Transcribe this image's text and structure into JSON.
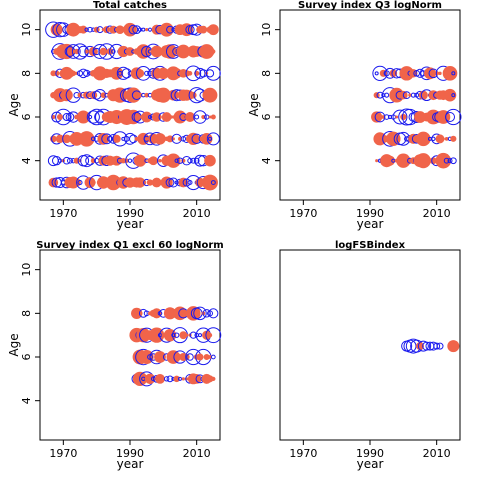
{
  "chart_data": [
    {
      "type": "bubble-residuals",
      "title": "Total catches",
      "xlabel": "year",
      "ylabel": "Age",
      "xlim": [
        1963,
        2017
      ],
      "ylim": [
        2.2,
        10.9
      ],
      "xticks": [
        "1970",
        "1990",
        "2010"
      ],
      "yticks": [
        "4",
        "6",
        "8",
        "10"
      ],
      "years": [
        1967,
        2015
      ],
      "ages": [
        3,
        4,
        5,
        6,
        7,
        8,
        9,
        10
      ],
      "mode": "dense"
    },
    {
      "type": "bubble-residuals",
      "title": "Survey index Q3 logNorm",
      "xlabel": "year",
      "ylabel": "Age",
      "xlim": [
        1963,
        2017
      ],
      "ylim": [
        2.2,
        10.9
      ],
      "xticks": [
        "1970",
        "1990",
        "2010"
      ],
      "yticks": [
        "4",
        "6",
        "8",
        "10"
      ],
      "years": [
        1992,
        2015
      ],
      "ages": [
        4,
        5,
        6,
        7,
        8
      ],
      "mode": "dense"
    },
    {
      "type": "bubble-residuals",
      "title": "Survey index Q1 excl 60 logNorm",
      "xlabel": "year",
      "ylabel": "Age",
      "xlim": [
        1963,
        2017
      ],
      "ylim": [
        2.2,
        10.9
      ],
      "xticks": [
        "1970",
        "1990",
        "2010"
      ],
      "yticks": [
        "4",
        "6",
        "8",
        "10"
      ],
      "years": [
        1992,
        2015
      ],
      "ages": [
        5,
        6,
        7,
        8
      ],
      "mode": "dense"
    },
    {
      "type": "bubble-residuals",
      "title": "logFSBindex",
      "xlabel": "year",
      "ylabel": "",
      "xlim": [
        1963,
        2017
      ],
      "ylim": [
        2.2,
        10.9
      ],
      "xticks": [
        "1970",
        "1990",
        "2010"
      ],
      "yticks": [],
      "years": [
        2001,
        2015
      ],
      "ages": [
        6.5
      ],
      "mode": "explicit",
      "points": [
        {
          "x": 2001,
          "r": 5,
          "sign": "neg"
        },
        {
          "x": 2002,
          "r": 6,
          "sign": "neg"
        },
        {
          "x": 2003,
          "r": 7,
          "sign": "neg"
        },
        {
          "x": 2004,
          "r": 6,
          "sign": "neg"
        },
        {
          "x": 2005,
          "r": 4,
          "sign": "pos"
        },
        {
          "x": 2006,
          "r": 5,
          "sign": "neg"
        },
        {
          "x": 2007,
          "r": 4,
          "sign": "neg"
        },
        {
          "x": 2008,
          "r": 4,
          "sign": "neg"
        },
        {
          "x": 2009,
          "r": 4,
          "sign": "neg"
        },
        {
          "x": 2010,
          "r": 3,
          "sign": "neg"
        },
        {
          "x": 2011,
          "r": 3,
          "sign": "neg"
        },
        {
          "x": 2015,
          "r": 6,
          "sign": "pos"
        }
      ]
    }
  ],
  "colors": {
    "positive": "#f0644a",
    "negative": "#1a1aee",
    "axis": "#000000"
  }
}
